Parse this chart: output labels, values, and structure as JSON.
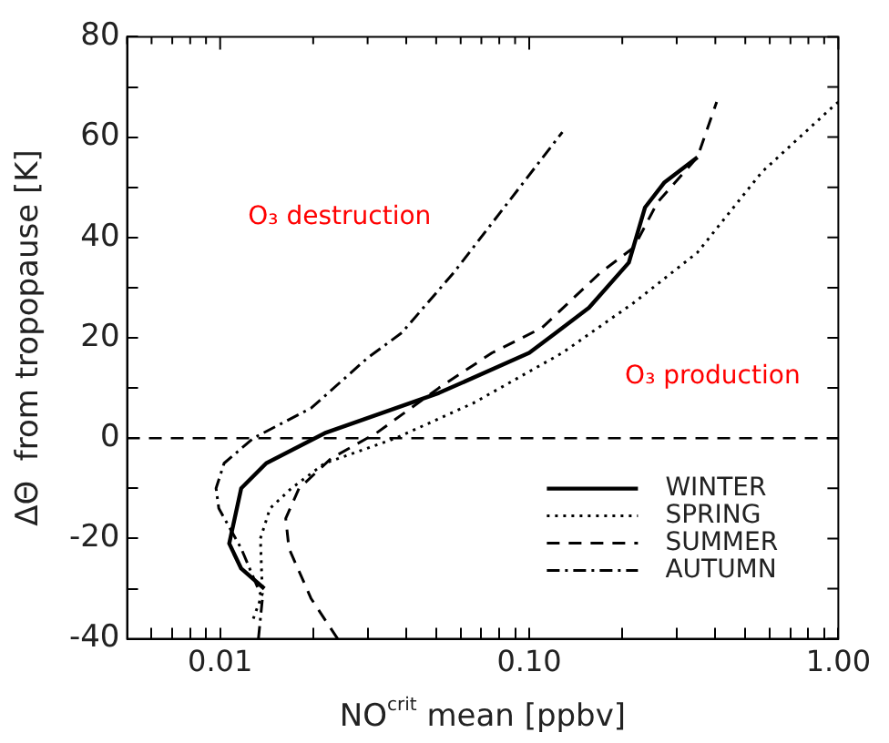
{
  "chart_data": {
    "type": "line",
    "xlabel": "NO$^{crit}$ mean [ppbv]",
    "ylabel": "ΔΘ  from tropopause [K]",
    "log": "x",
    "xlim": [
      0.005,
      1
    ],
    "ylim": [
      -40,
      80
    ],
    "xticks": [
      {
        "value": 0.005,
        "label": null
      },
      {
        "value": 0.006,
        "label": null
      },
      {
        "value": 0.007,
        "label": null
      },
      {
        "value": 0.008,
        "label": null
      },
      {
        "value": 0.009,
        "label": null
      },
      {
        "value": 0.01,
        "label": "0.01"
      },
      {
        "value": 0.02,
        "label": null
      },
      {
        "value": 0.03,
        "label": null
      },
      {
        "value": 0.04,
        "label": null
      },
      {
        "value": 0.05,
        "label": null
      },
      {
        "value": 0.06,
        "label": null
      },
      {
        "value": 0.07,
        "label": null
      },
      {
        "value": 0.08,
        "label": null
      },
      {
        "value": 0.09,
        "label": null
      },
      {
        "value": 0.1,
        "label": "0.10"
      },
      {
        "value": 0.2,
        "label": null
      },
      {
        "value": 0.3,
        "label": null
      },
      {
        "value": 0.4,
        "label": null
      },
      {
        "value": 0.5,
        "label": null
      },
      {
        "value": 0.6,
        "label": null
      },
      {
        "value": 0.7,
        "label": null
      },
      {
        "value": 0.8,
        "label": null
      },
      {
        "value": 0.9,
        "label": null
      },
      {
        "value": 1,
        "label": "1.00"
      }
    ],
    "yticks": [
      -40,
      {
        "value": -30,
        "label": null
      },
      -20,
      {
        "value": -10,
        "label": null
      },
      0,
      {
        "value": 10,
        "label": null
      },
      20,
      {
        "value": 30,
        "label": null
      },
      40,
      {
        "value": 50,
        "label": null
      },
      60,
      {
        "value": 70,
        "label": null
      },
      80
    ],
    "series": [
      {
        "name": "WINTER",
        "color": "#000000",
        "line_style": "solid",
        "x": [
          0.0139,
          0.0117,
          0.0107,
          0.0117,
          0.0141,
          0.0218,
          0.051,
          0.1,
          0.122,
          0.156,
          0.21,
          0.237,
          0.274,
          0.35
        ],
        "values": [
          -30,
          -26,
          -21,
          -10,
          -5,
          1,
          9,
          17,
          21,
          26,
          35,
          46,
          51,
          56
        ]
      },
      {
        "name": "SPRING",
        "color": "#000000",
        "line_style": "dotted",
        "x": [
          0.0128,
          0.0137,
          0.0135,
          0.0145,
          0.017,
          0.0218,
          0.037,
          0.066,
          0.128,
          0.218,
          0.35,
          0.565,
          0.957,
          1.0
        ],
        "values": [
          -36,
          -31,
          -20,
          -14,
          -10,
          -5,
          0,
          7,
          17,
          27,
          37,
          53,
          66,
          67
        ]
      },
      {
        "name": "SUMMER",
        "color": "#000000",
        "line_style": "dashed",
        "x": [
          0.024,
          0.0197,
          0.0167,
          0.0163,
          0.018,
          0.0229,
          0.032,
          0.051,
          0.0758,
          0.11,
          0.17,
          0.218,
          0.26,
          0.35,
          0.404
        ],
        "values": [
          -40,
          -32,
          -22,
          -16,
          -10,
          -4,
          1,
          10,
          17,
          22,
          33,
          38,
          47,
          56,
          67
        ]
      },
      {
        "name": "AUTUMN",
        "color": "#000000",
        "line_style": "dashdot",
        "x": [
          0.0133,
          0.0137,
          0.0117,
          0.0099,
          0.0097,
          0.0103,
          0.0128,
          0.0197,
          0.03,
          0.0387,
          0.057,
          0.083,
          0.128
        ],
        "values": [
          -40,
          -32,
          -22,
          -14,
          -10,
          -5,
          0,
          6,
          16,
          21,
          33,
          46,
          61
        ]
      }
    ],
    "ref_lines": [
      {
        "axis": "y",
        "value": 0,
        "line_style": "dashed",
        "color": "#000000"
      }
    ],
    "annotations": [
      "O₃ destruction",
      "O₃ production"
    ],
    "legend": "bottom right"
  }
}
